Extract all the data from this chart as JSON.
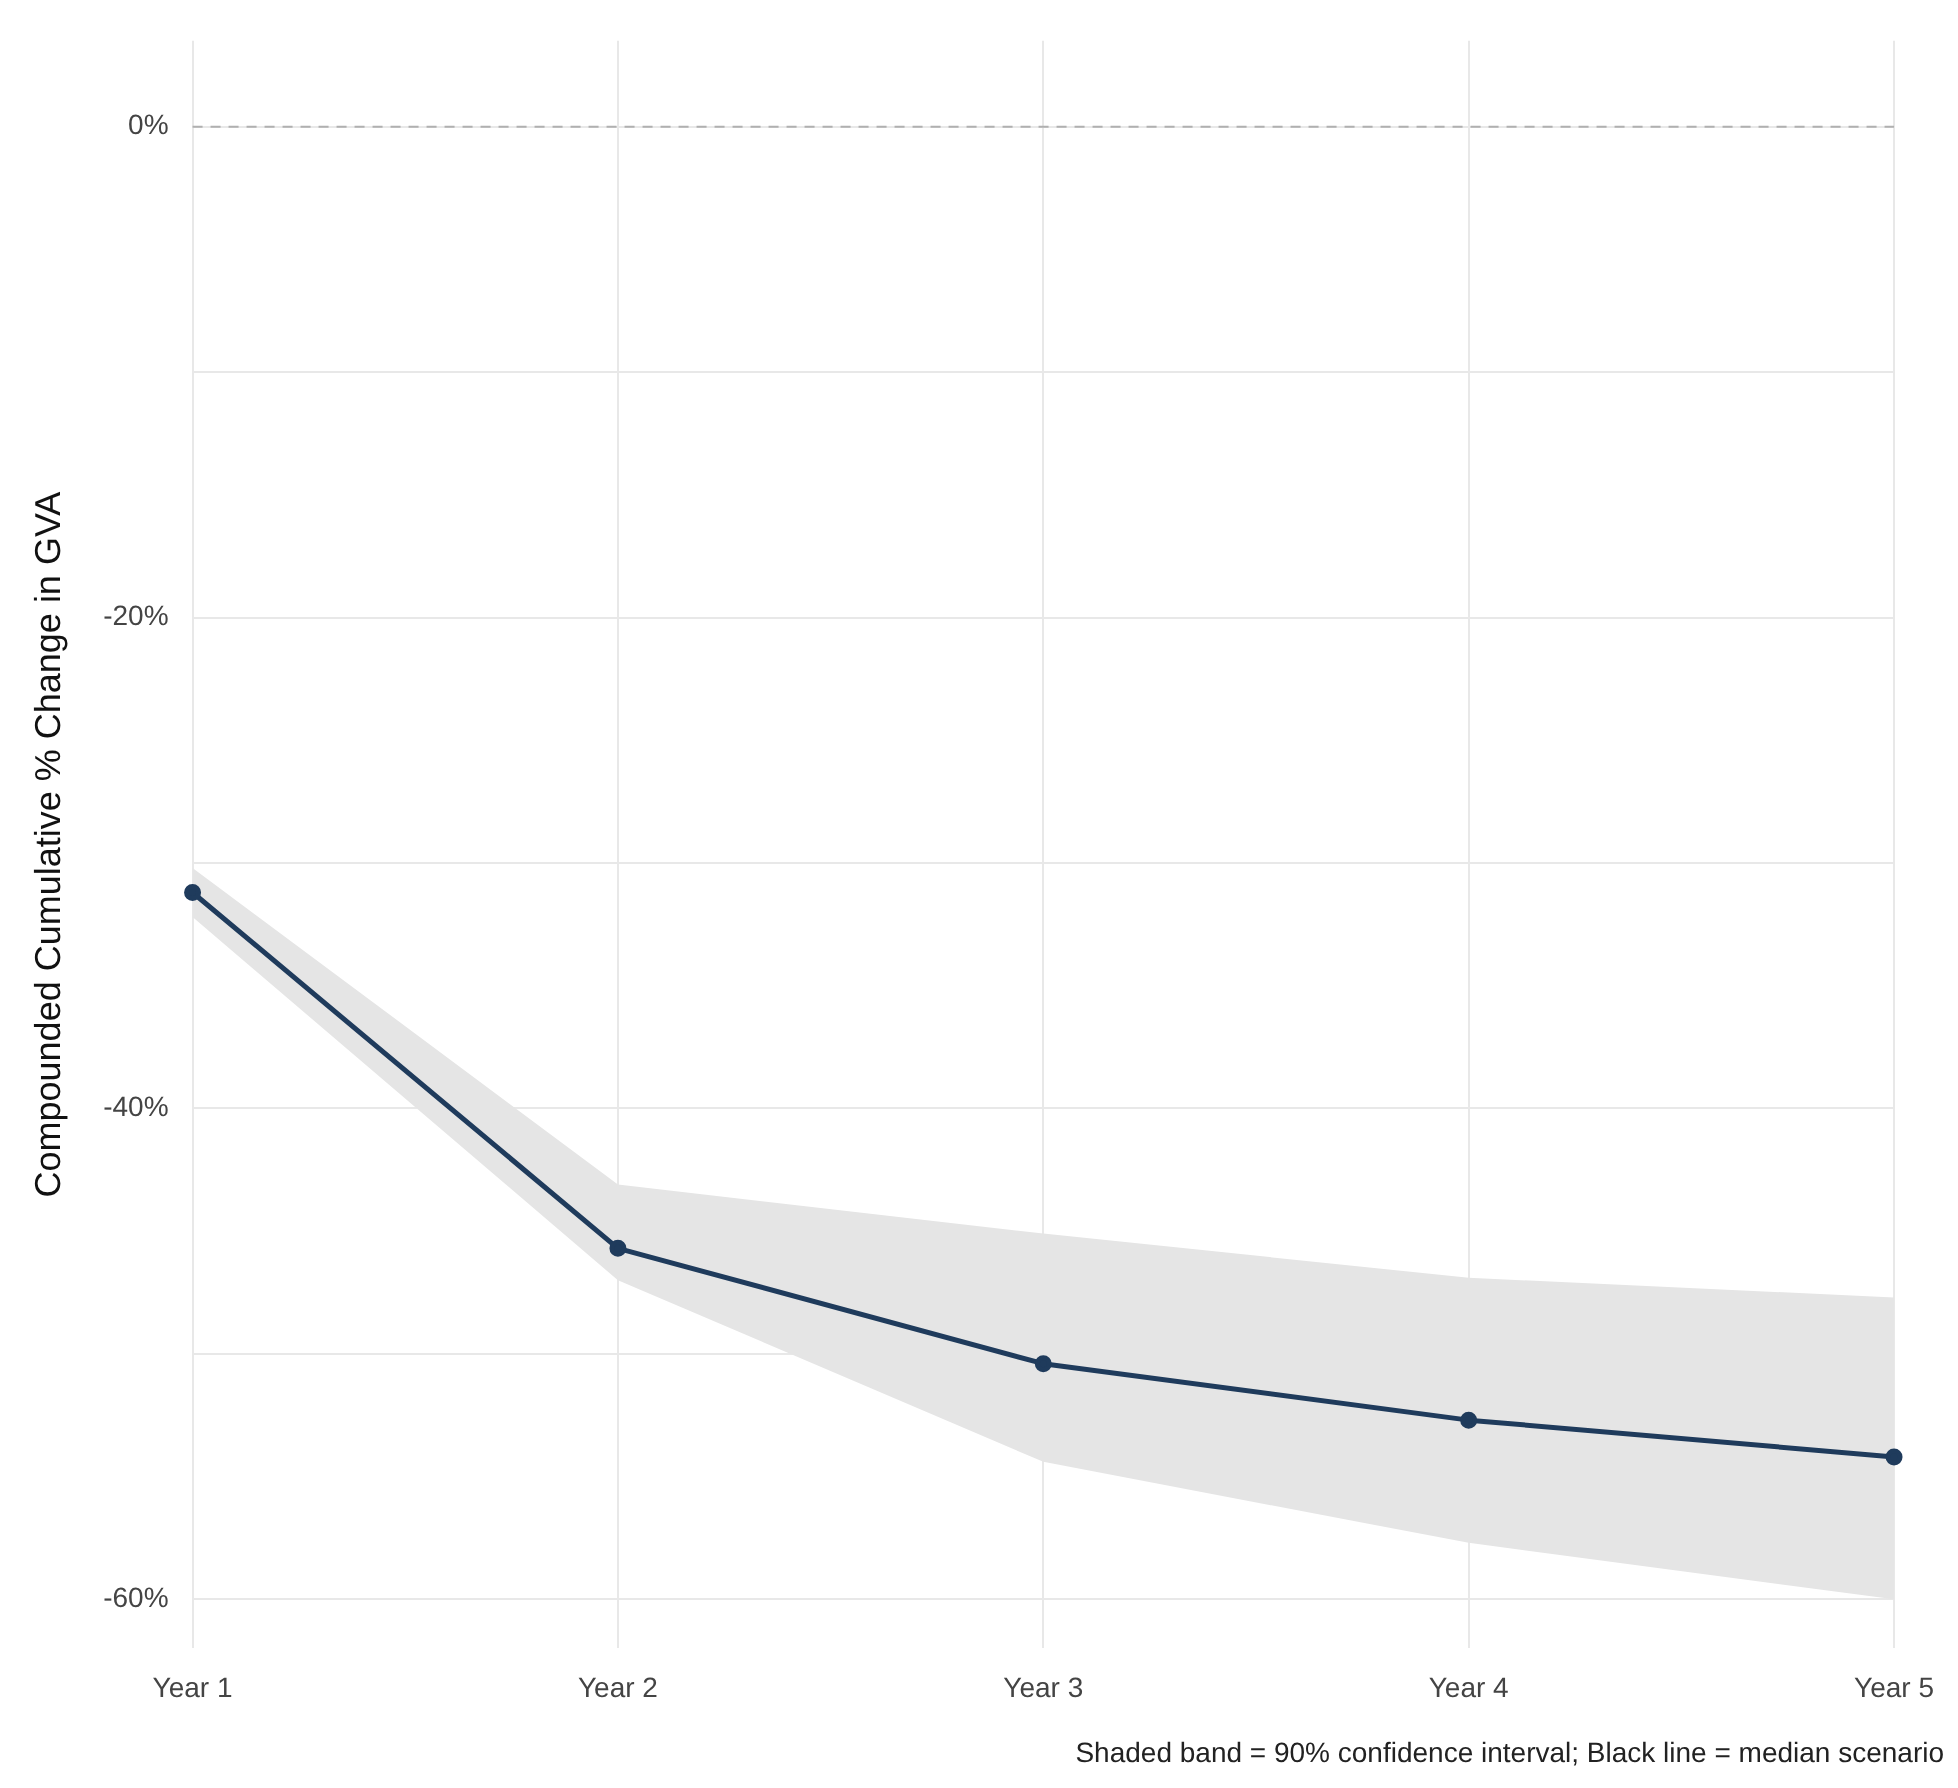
{
  "chart_data": {
    "type": "line",
    "ylabel": "Compounded Cumulative % Change in GVA",
    "categories": [
      "Year 1",
      "Year 2",
      "Year 3",
      "Year 4",
      "Year 5"
    ],
    "series": [
      {
        "color": "#1f3b5c",
        "values": [
          -31.2,
          -45.7,
          -50.4,
          -52.7,
          -54.2
        ],
        "lower": [
          -32.2,
          -47.0,
          -54.4,
          -57.7,
          -60.0
        ],
        "upper": [
          -30.2,
          -43.1,
          -45.1,
          -46.9,
          -47.7
        ]
      }
    ],
    "ylim": [
      -62,
      3.5
    ],
    "yticks": [
      {
        "value": 0,
        "label": "0%"
      },
      {
        "value": -10,
        "label": null
      },
      {
        "value": -20,
        "label": "-20%"
      },
      {
        "value": -30,
        "label": null
      },
      {
        "value": -40,
        "label": "-40%"
      },
      {
        "value": -50,
        "label": null
      },
      {
        "value": -60,
        "label": "-60%"
      }
    ],
    "grid": true,
    "marker": "circle",
    "line_style": "solid",
    "legend": false,
    "ref_lines": [
      {
        "axis": "y",
        "value": 0,
        "color": "#b0b0b0",
        "line_style": "dashed"
      }
    ],
    "annotations": [
      "Shaded band = 90% confidence interval; Black line = median scenario"
    ]
  }
}
